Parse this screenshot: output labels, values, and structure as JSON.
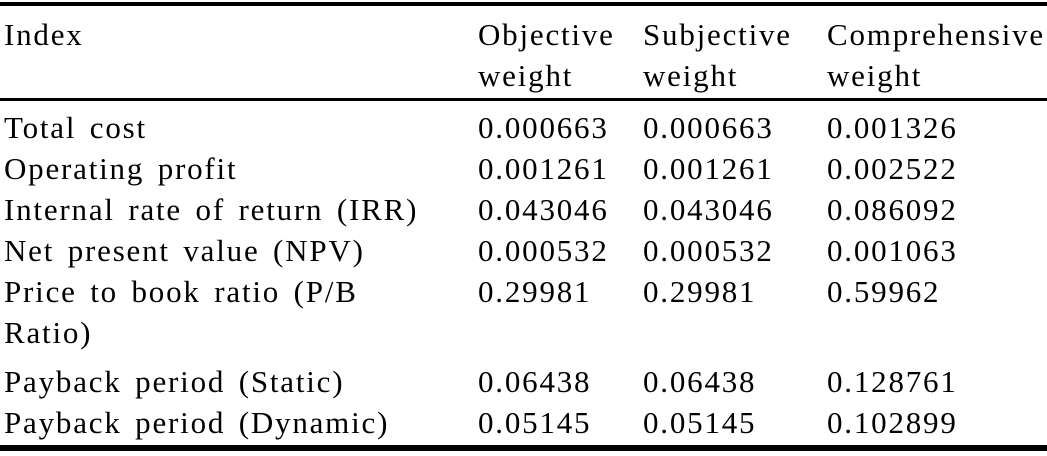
{
  "table": {
    "columns": [
      "Index",
      "Objective weight",
      "Subjective weight",
      "Comprehensive weight"
    ],
    "rows": [
      {
        "index": "Total cost",
        "objective_weight": "0.000663",
        "subjective_weight": "0.000663",
        "comprehensive_weight": "0.001326"
      },
      {
        "index": "Operating profit",
        "objective_weight": "0.001261",
        "subjective_weight": "0.001261",
        "comprehensive_weight": "0.002522"
      },
      {
        "index": "Internal rate of return (IRR)",
        "objective_weight": "0.043046",
        "subjective_weight": "0.043046",
        "comprehensive_weight": "0.086092"
      },
      {
        "index": "Net present value (NPV)",
        "objective_weight": "0.000532",
        "subjective_weight": "0.000532",
        "comprehensive_weight": "0.001063"
      },
      {
        "index": "Price to book ratio (P/B Ratio)",
        "objective_weight": "0.29981",
        "subjective_weight": "0.29981",
        "comprehensive_weight": "0.59962"
      },
      {
        "index": "Payback period (Static)",
        "objective_weight": "0.06438",
        "subjective_weight": "0.06438",
        "comprehensive_weight": "0.128761"
      },
      {
        "index": "Payback period (Dynamic)",
        "objective_weight": "0.05145",
        "subjective_weight": "0.05145",
        "comprehensive_weight": "0.102899"
      }
    ],
    "styles": {
      "text_color": "#000000",
      "background_color": "#ffffff",
      "rule_color": "#000000"
    }
  }
}
